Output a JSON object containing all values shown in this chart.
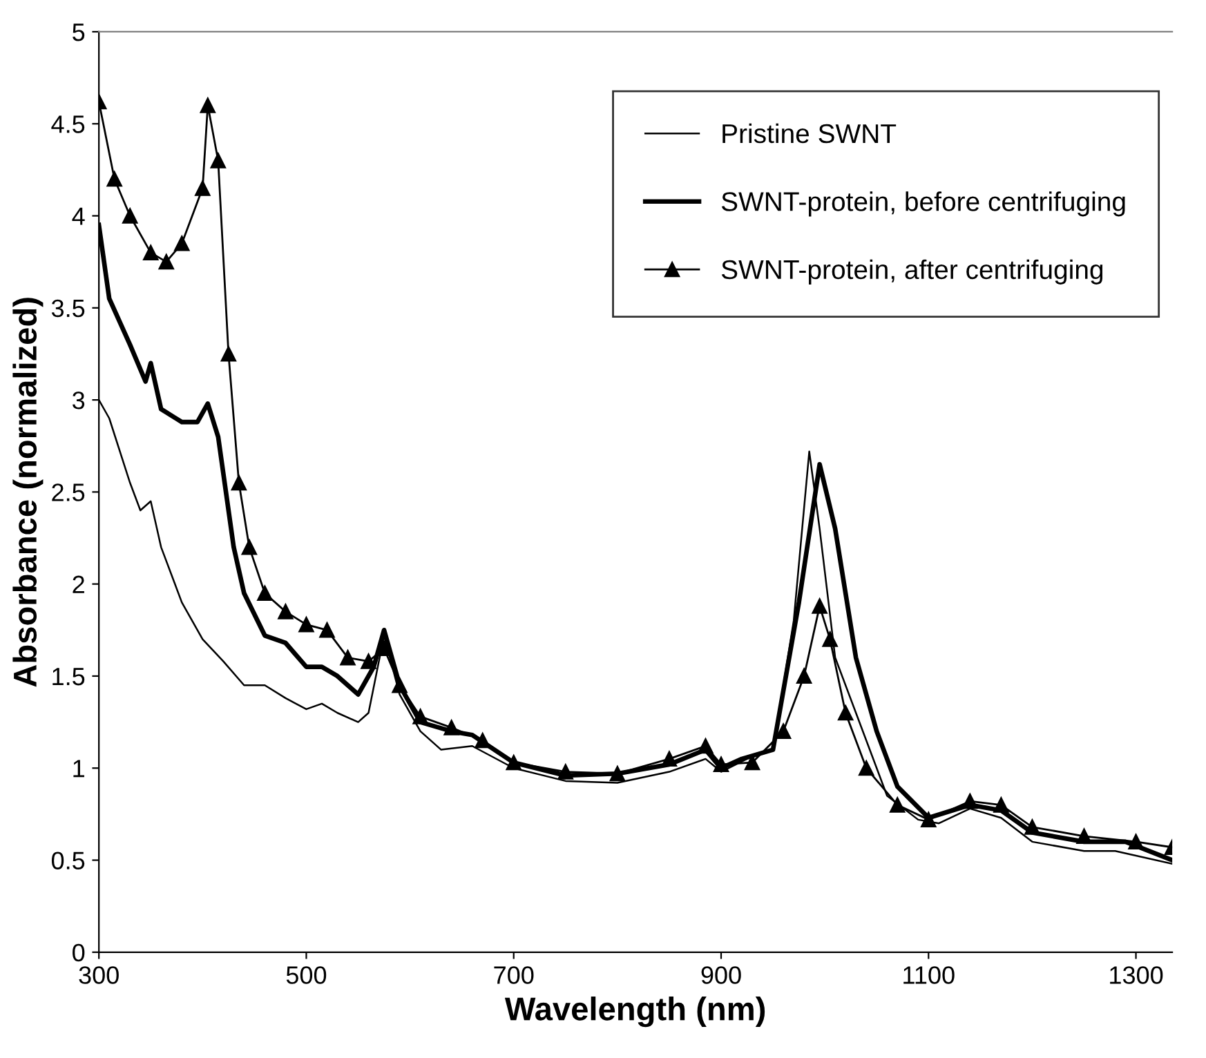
{
  "chart_data": {
    "type": "line",
    "xlabel": "Wavelength (nm)",
    "ylabel": "Absorbance (normalized)",
    "xlim": [
      300,
      1335
    ],
    "xticks": [
      300,
      500,
      700,
      900,
      1100,
      1300
    ],
    "ylim": [
      0,
      5
    ],
    "yticks": [
      0,
      0.5,
      1,
      1.5,
      2,
      2.5,
      3,
      3.5,
      4,
      4.5,
      5
    ],
    "grid": false,
    "legend": "top right",
    "series": [
      {
        "name": "Pristine SWNT",
        "color": "#000000",
        "marker": "none",
        "x": [
          300,
          310,
          330,
          340,
          350,
          360,
          380,
          400,
          420,
          440,
          460,
          480,
          500,
          515,
          530,
          550,
          560,
          575,
          590,
          610,
          630,
          660,
          700,
          750,
          800,
          850,
          885,
          900,
          925,
          950,
          970,
          985,
          995,
          1010,
          1030,
          1060,
          1090,
          1110,
          1140,
          1170,
          1200,
          1250,
          1280,
          1335
        ],
        "values": [
          3.0,
          2.9,
          2.55,
          2.4,
          2.45,
          2.2,
          1.9,
          1.7,
          1.58,
          1.45,
          1.45,
          1.38,
          1.32,
          1.35,
          1.3,
          1.25,
          1.3,
          1.72,
          1.4,
          1.2,
          1.1,
          1.12,
          1.0,
          0.93,
          0.92,
          0.98,
          1.05,
          0.98,
          1.05,
          1.1,
          1.8,
          2.72,
          2.3,
          1.6,
          1.3,
          0.85,
          0.72,
          0.7,
          0.78,
          0.73,
          0.6,
          0.55,
          0.55,
          0.48
        ]
      },
      {
        "name": "SWNT-protein, before centrifuging",
        "color": "#000000",
        "marker": "none",
        "x": [
          300,
          310,
          330,
          345,
          350,
          360,
          380,
          395,
          405,
          415,
          430,
          440,
          460,
          480,
          500,
          515,
          530,
          550,
          565,
          575,
          590,
          610,
          640,
          660,
          700,
          750,
          800,
          850,
          885,
          900,
          920,
          950,
          975,
          995,
          1010,
          1030,
          1050,
          1070,
          1100,
          1140,
          1170,
          1200,
          1250,
          1290,
          1335
        ],
        "values": [
          3.95,
          3.55,
          3.3,
          3.1,
          3.2,
          2.95,
          2.88,
          2.88,
          2.98,
          2.8,
          2.2,
          1.95,
          1.72,
          1.68,
          1.55,
          1.55,
          1.5,
          1.4,
          1.55,
          1.75,
          1.45,
          1.25,
          1.2,
          1.18,
          1.03,
          0.96,
          0.97,
          1.02,
          1.1,
          1.0,
          1.05,
          1.1,
          1.9,
          2.65,
          2.3,
          1.6,
          1.2,
          0.9,
          0.73,
          0.8,
          0.77,
          0.65,
          0.6,
          0.6,
          0.5
        ]
      },
      {
        "name": "SWNT-protein, after centrifuging",
        "color": "#000000",
        "marker": "triangle",
        "x": [
          300,
          315,
          330,
          350,
          365,
          380,
          400,
          405,
          415,
          425,
          435,
          445,
          460,
          480,
          500,
          520,
          540,
          560,
          575,
          590,
          610,
          640,
          670,
          700,
          750,
          800,
          850,
          885,
          900,
          930,
          960,
          980,
          995,
          1005,
          1020,
          1040,
          1070,
          1100,
          1140,
          1170,
          1200,
          1250,
          1300,
          1335
        ],
        "values": [
          4.62,
          4.2,
          4.0,
          3.8,
          3.75,
          3.85,
          4.15,
          4.6,
          4.3,
          3.25,
          2.55,
          2.2,
          1.95,
          1.85,
          1.78,
          1.75,
          1.6,
          1.58,
          1.65,
          1.45,
          1.28,
          1.22,
          1.15,
          1.03,
          0.98,
          0.97,
          1.05,
          1.12,
          1.02,
          1.03,
          1.2,
          1.5,
          1.88,
          1.7,
          1.3,
          1.0,
          0.8,
          0.72,
          0.82,
          0.8,
          0.68,
          0.63,
          0.6,
          0.57
        ]
      }
    ]
  }
}
